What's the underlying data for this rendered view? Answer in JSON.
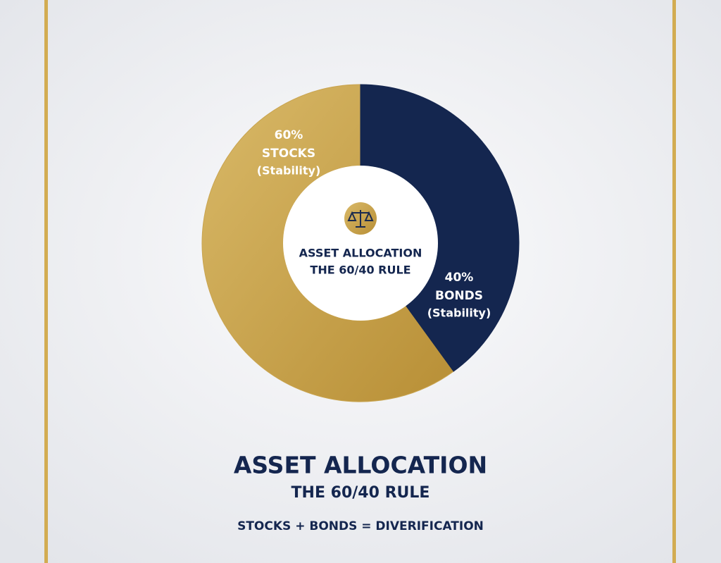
{
  "chart_data": {
    "type": "donut",
    "title": "ASSET ALLOCATION",
    "subtitle": "THE 60/40 RULE",
    "footer": "STOCKS + BONDS = DIVERIFICATION",
    "center_title": "ASSET ALLOCATION",
    "center_subtitle": "THE 60/40 RULE",
    "categories": [
      "STOCKS",
      "BONDS"
    ],
    "sublabels": [
      "(Stability)",
      "(Stability)"
    ],
    "values": [
      60,
      40
    ],
    "value_labels": [
      "60%",
      "40%"
    ],
    "colors": [
      "#c9a44f",
      "#14264f"
    ]
  }
}
